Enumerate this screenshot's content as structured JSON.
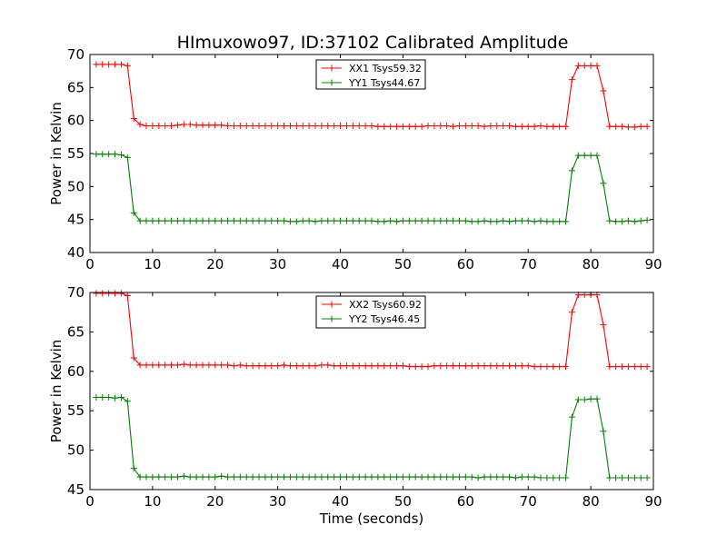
{
  "figure": {
    "title": "HImuxowo97, ID:37102 Calibrated Amplitude",
    "background": "#ffffff"
  },
  "chart_data": [
    {
      "type": "line",
      "title": "HImuxowo97, ID:37102 Calibrated Amplitude",
      "xlabel": "",
      "ylabel": "Power in Kelvin",
      "xlim": [
        0,
        90
      ],
      "ylim": [
        40,
        70
      ],
      "xticks": [
        0,
        10,
        20,
        30,
        40,
        50,
        60,
        70,
        80,
        90
      ],
      "yticks": [
        40,
        45,
        50,
        55,
        60,
        65,
        70
      ],
      "grid": false,
      "legend_position": "top-center",
      "series": [
        {
          "name": "XX1 Tsys59.32",
          "color": "#ff0000",
          "marker": "+",
          "x": [
            1,
            2,
            3,
            4,
            5,
            6,
            7,
            8,
            9,
            10,
            11,
            12,
            13,
            14,
            15,
            16,
            17,
            18,
            19,
            20,
            21,
            22,
            23,
            24,
            25,
            26,
            27,
            28,
            29,
            30,
            31,
            32,
            33,
            34,
            35,
            36,
            37,
            38,
            39,
            40,
            41,
            42,
            43,
            44,
            45,
            46,
            47,
            48,
            49,
            50,
            51,
            52,
            53,
            54,
            55,
            56,
            57,
            58,
            59,
            60,
            61,
            62,
            63,
            64,
            65,
            66,
            67,
            68,
            69,
            70,
            71,
            72,
            73,
            74,
            75,
            76,
            77,
            78,
            79,
            80,
            81,
            82,
            83,
            84,
            85,
            86,
            87,
            88,
            89
          ],
          "y": [
            68.5,
            68.5,
            68.5,
            68.5,
            68.5,
            68.3,
            60.3,
            59.4,
            59.2,
            59.2,
            59.2,
            59.2,
            59.2,
            59.3,
            59.4,
            59.4,
            59.3,
            59.3,
            59.3,
            59.3,
            59.3,
            59.2,
            59.2,
            59.2,
            59.2,
            59.2,
            59.2,
            59.2,
            59.2,
            59.2,
            59.2,
            59.2,
            59.2,
            59.2,
            59.2,
            59.2,
            59.2,
            59.2,
            59.2,
            59.2,
            59.2,
            59.2,
            59.2,
            59.2,
            59.2,
            59.1,
            59.1,
            59.1,
            59.1,
            59.1,
            59.1,
            59.1,
            59.1,
            59.2,
            59.2,
            59.2,
            59.2,
            59.1,
            59.2,
            59.2,
            59.2,
            59.2,
            59.1,
            59.2,
            59.2,
            59.2,
            59.2,
            59.1,
            59.1,
            59.1,
            59.1,
            59.2,
            59.1,
            59.1,
            59.1,
            59.1,
            66.2,
            68.3,
            68.3,
            68.3,
            68.3,
            64.5,
            59.1,
            59.1,
            59.1,
            59.0,
            59.0,
            59.1,
            59.1
          ]
        },
        {
          "name": "YY1 Tsys44.67",
          "color": "#008000",
          "marker": "+",
          "x": [
            1,
            2,
            3,
            4,
            5,
            6,
            7,
            8,
            9,
            10,
            11,
            12,
            13,
            14,
            15,
            16,
            17,
            18,
            19,
            20,
            21,
            22,
            23,
            24,
            25,
            26,
            27,
            28,
            29,
            30,
            31,
            32,
            33,
            34,
            35,
            36,
            37,
            38,
            39,
            40,
            41,
            42,
            43,
            44,
            45,
            46,
            47,
            48,
            49,
            50,
            51,
            52,
            53,
            54,
            55,
            56,
            57,
            58,
            59,
            60,
            61,
            62,
            63,
            64,
            65,
            66,
            67,
            68,
            69,
            70,
            71,
            72,
            73,
            74,
            75,
            76,
            77,
            78,
            79,
            80,
            81,
            82,
            83,
            84,
            85,
            86,
            87,
            88,
            89
          ],
          "y": [
            54.9,
            54.9,
            54.9,
            54.9,
            54.8,
            54.4,
            46.0,
            44.8,
            44.8,
            44.8,
            44.8,
            44.8,
            44.8,
            44.8,
            44.8,
            44.8,
            44.8,
            44.8,
            44.8,
            44.8,
            44.8,
            44.8,
            44.8,
            44.8,
            44.8,
            44.8,
            44.8,
            44.8,
            44.8,
            44.8,
            44.8,
            44.7,
            44.7,
            44.8,
            44.8,
            44.7,
            44.8,
            44.8,
            44.8,
            44.8,
            44.8,
            44.8,
            44.8,
            44.8,
            44.8,
            44.7,
            44.7,
            44.8,
            44.7,
            44.8,
            44.8,
            44.8,
            44.8,
            44.8,
            44.8,
            44.8,
            44.8,
            44.8,
            44.8,
            44.8,
            44.7,
            44.7,
            44.8,
            44.7,
            44.7,
            44.8,
            44.7,
            44.8,
            44.8,
            44.8,
            44.7,
            44.8,
            44.7,
            44.7,
            44.7,
            44.7,
            52.4,
            54.7,
            54.7,
            54.7,
            54.7,
            50.5,
            44.8,
            44.7,
            44.7,
            44.8,
            44.7,
            44.8,
            44.9
          ]
        }
      ]
    },
    {
      "type": "line",
      "title": "",
      "xlabel": "Time (seconds)",
      "ylabel": "Power in Kelvin",
      "xlim": [
        0,
        90
      ],
      "ylim": [
        45,
        70
      ],
      "xticks": [
        0,
        10,
        20,
        30,
        40,
        50,
        60,
        70,
        80,
        90
      ],
      "yticks": [
        45,
        50,
        55,
        60,
        65,
        70
      ],
      "grid": false,
      "legend_position": "top-center",
      "series": [
        {
          "name": "XX2 Tsys60.92",
          "color": "#ff0000",
          "marker": "+",
          "x": [
            1,
            2,
            3,
            4,
            5,
            6,
            7,
            8,
            9,
            10,
            11,
            12,
            13,
            14,
            15,
            16,
            17,
            18,
            19,
            20,
            21,
            22,
            23,
            24,
            25,
            26,
            27,
            28,
            29,
            30,
            31,
            32,
            33,
            34,
            35,
            36,
            37,
            38,
            39,
            40,
            41,
            42,
            43,
            44,
            45,
            46,
            47,
            48,
            49,
            50,
            51,
            52,
            53,
            54,
            55,
            56,
            57,
            58,
            59,
            60,
            61,
            62,
            63,
            64,
            65,
            66,
            67,
            68,
            69,
            70,
            71,
            72,
            73,
            74,
            75,
            76,
            77,
            78,
            79,
            80,
            81,
            82,
            83,
            84,
            85,
            86,
            87,
            88,
            89
          ],
          "y": [
            69.9,
            69.9,
            69.9,
            69.9,
            69.9,
            69.6,
            61.7,
            60.8,
            60.8,
            60.8,
            60.8,
            60.8,
            60.8,
            60.8,
            60.9,
            60.8,
            60.8,
            60.8,
            60.8,
            60.8,
            60.8,
            60.8,
            60.7,
            60.8,
            60.7,
            60.7,
            60.7,
            60.7,
            60.7,
            60.7,
            60.8,
            60.7,
            60.7,
            60.7,
            60.7,
            60.7,
            60.8,
            60.8,
            60.7,
            60.7,
            60.7,
            60.7,
            60.7,
            60.7,
            60.7,
            60.7,
            60.7,
            60.7,
            60.7,
            60.7,
            60.6,
            60.6,
            60.6,
            60.6,
            60.7,
            60.7,
            60.7,
            60.7,
            60.7,
            60.7,
            60.7,
            60.7,
            60.7,
            60.7,
            60.7,
            60.7,
            60.7,
            60.7,
            60.7,
            60.7,
            60.6,
            60.6,
            60.6,
            60.6,
            60.6,
            60.6,
            67.5,
            69.7,
            69.7,
            69.7,
            69.7,
            65.9,
            60.6,
            60.6,
            60.6,
            60.6,
            60.6,
            60.6,
            60.6
          ]
        },
        {
          "name": "YY2 Tsys46.45",
          "color": "#008000",
          "marker": "+",
          "x": [
            1,
            2,
            3,
            4,
            5,
            6,
            7,
            8,
            9,
            10,
            11,
            12,
            13,
            14,
            15,
            16,
            17,
            18,
            19,
            20,
            21,
            22,
            23,
            24,
            25,
            26,
            27,
            28,
            29,
            30,
            31,
            32,
            33,
            34,
            35,
            36,
            37,
            38,
            39,
            40,
            41,
            42,
            43,
            44,
            45,
            46,
            47,
            48,
            49,
            50,
            51,
            52,
            53,
            54,
            55,
            56,
            57,
            58,
            59,
            60,
            61,
            62,
            63,
            64,
            65,
            66,
            67,
            68,
            69,
            70,
            71,
            72,
            73,
            74,
            75,
            76,
            77,
            78,
            79,
            80,
            81,
            82,
            83,
            84,
            85,
            86,
            87,
            88,
            89
          ],
          "y": [
            56.7,
            56.7,
            56.7,
            56.6,
            56.7,
            56.2,
            47.7,
            46.6,
            46.6,
            46.6,
            46.6,
            46.6,
            46.6,
            46.6,
            46.7,
            46.6,
            46.6,
            46.6,
            46.6,
            46.6,
            46.7,
            46.6,
            46.6,
            46.6,
            46.6,
            46.6,
            46.6,
            46.6,
            46.6,
            46.6,
            46.6,
            46.6,
            46.6,
            46.6,
            46.6,
            46.6,
            46.6,
            46.6,
            46.6,
            46.6,
            46.6,
            46.6,
            46.6,
            46.6,
            46.6,
            46.6,
            46.6,
            46.6,
            46.6,
            46.6,
            46.6,
            46.6,
            46.6,
            46.6,
            46.6,
            46.6,
            46.6,
            46.6,
            46.6,
            46.6,
            46.6,
            46.5,
            46.6,
            46.6,
            46.6,
            46.6,
            46.6,
            46.5,
            46.6,
            46.6,
            46.6,
            46.5,
            46.5,
            46.5,
            46.5,
            46.5,
            54.2,
            56.4,
            56.4,
            56.5,
            56.5,
            52.4,
            46.5,
            46.5,
            46.5,
            46.5,
            46.5,
            46.5,
            46.5
          ]
        }
      ]
    }
  ]
}
